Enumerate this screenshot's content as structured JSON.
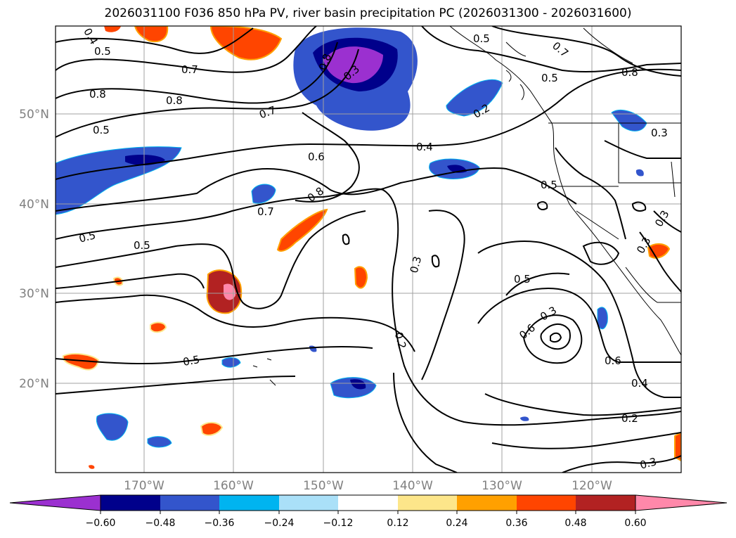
{
  "title": "2026031100 F036 850 hPa PV, river basin precipitation PC (2026031300 - 2026031600)",
  "lat_labels": [
    "50°N",
    "40°N",
    "30°N",
    "20°N"
  ],
  "lon_labels": [
    "170°W",
    "160°W",
    "150°W",
    "140°W",
    "130°W",
    "120°W"
  ],
  "contour_labels": [
    "0.4",
    "0.5",
    "0.7",
    "0.8",
    "0.5",
    "0.8",
    "0.7",
    "0.8",
    "0.3",
    "0.2",
    "0.7",
    "0.5",
    "0.8",
    "0.3",
    "0.4",
    "0.6",
    "0.5",
    "0.8",
    "0.7",
    "0.5",
    "0.5",
    "0.5",
    "0.3",
    "0.3",
    "0.5",
    "0.6",
    "0.3",
    "0.2",
    "0.5",
    "0.6",
    "0.4",
    "0.2",
    "0.3",
    "0.3"
  ],
  "colorbar": {
    "ticks": [
      "−0.60",
      "−0.48",
      "−0.36",
      "−0.24",
      "−0.12",
      "0.12",
      "0.24",
      "0.36",
      "0.48",
      "0.60"
    ],
    "colors": [
      "#9b30d0",
      "#00008b",
      "#3355cc",
      "#00b4f0",
      "#aae0f8",
      "#ffffff",
      "#fde68a",
      "#ffa000",
      "#ff4500",
      "#b22222",
      "#ff88aa",
      "#ff88aa"
    ]
  }
}
